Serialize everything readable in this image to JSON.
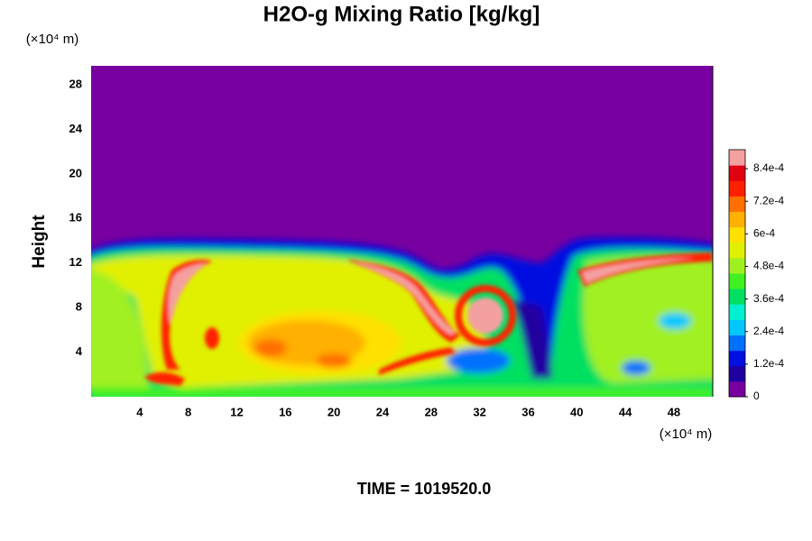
{
  "chart_data": {
    "type": "contour",
    "title": "H2O-g Mixing Ratio [kg/kg]",
    "ylabel": "Height",
    "xunit": "(×10⁴ m)",
    "yunit": "(×10⁴ m)",
    "footer": "TIME = 1019520.0",
    "xlim": [
      0,
      51.2
    ],
    "ylim": [
      0,
      29.7
    ],
    "xticks": [
      4,
      8,
      12,
      16,
      20,
      24,
      28,
      32,
      36,
      40,
      44,
      48
    ],
    "yticks": [
      4,
      8,
      12,
      16,
      20,
      24,
      28
    ],
    "clim": [
      0,
      0.00091
    ],
    "cticks": [
      0,
      {
        "value": 0.00012,
        "label": "1.2e-4"
      },
      {
        "value": 0.00024,
        "label": "2.4e-4"
      },
      {
        "value": 0.00036,
        "label": "3.6e-4"
      },
      {
        "value": 0.00048,
        "label": "4.8e-4"
      },
      {
        "value": 0.0006,
        "label": "6e-4"
      },
      {
        "value": 0.00072,
        "label": "7.2e-4"
      },
      {
        "value": 0.00084,
        "label": "8.4e-4"
      }
    ],
    "colors": [
      "#7800a0",
      "#2000a0",
      "#0010e0",
      "#0070ff",
      "#00c8ff",
      "#00f0d0",
      "#00e060",
      "#40f020",
      "#a0f020",
      "#e0f000",
      "#ffe000",
      "#ffb000",
      "#ff7000",
      "#ff2000",
      "#e00010",
      "#f4a0a0"
    ]
  }
}
